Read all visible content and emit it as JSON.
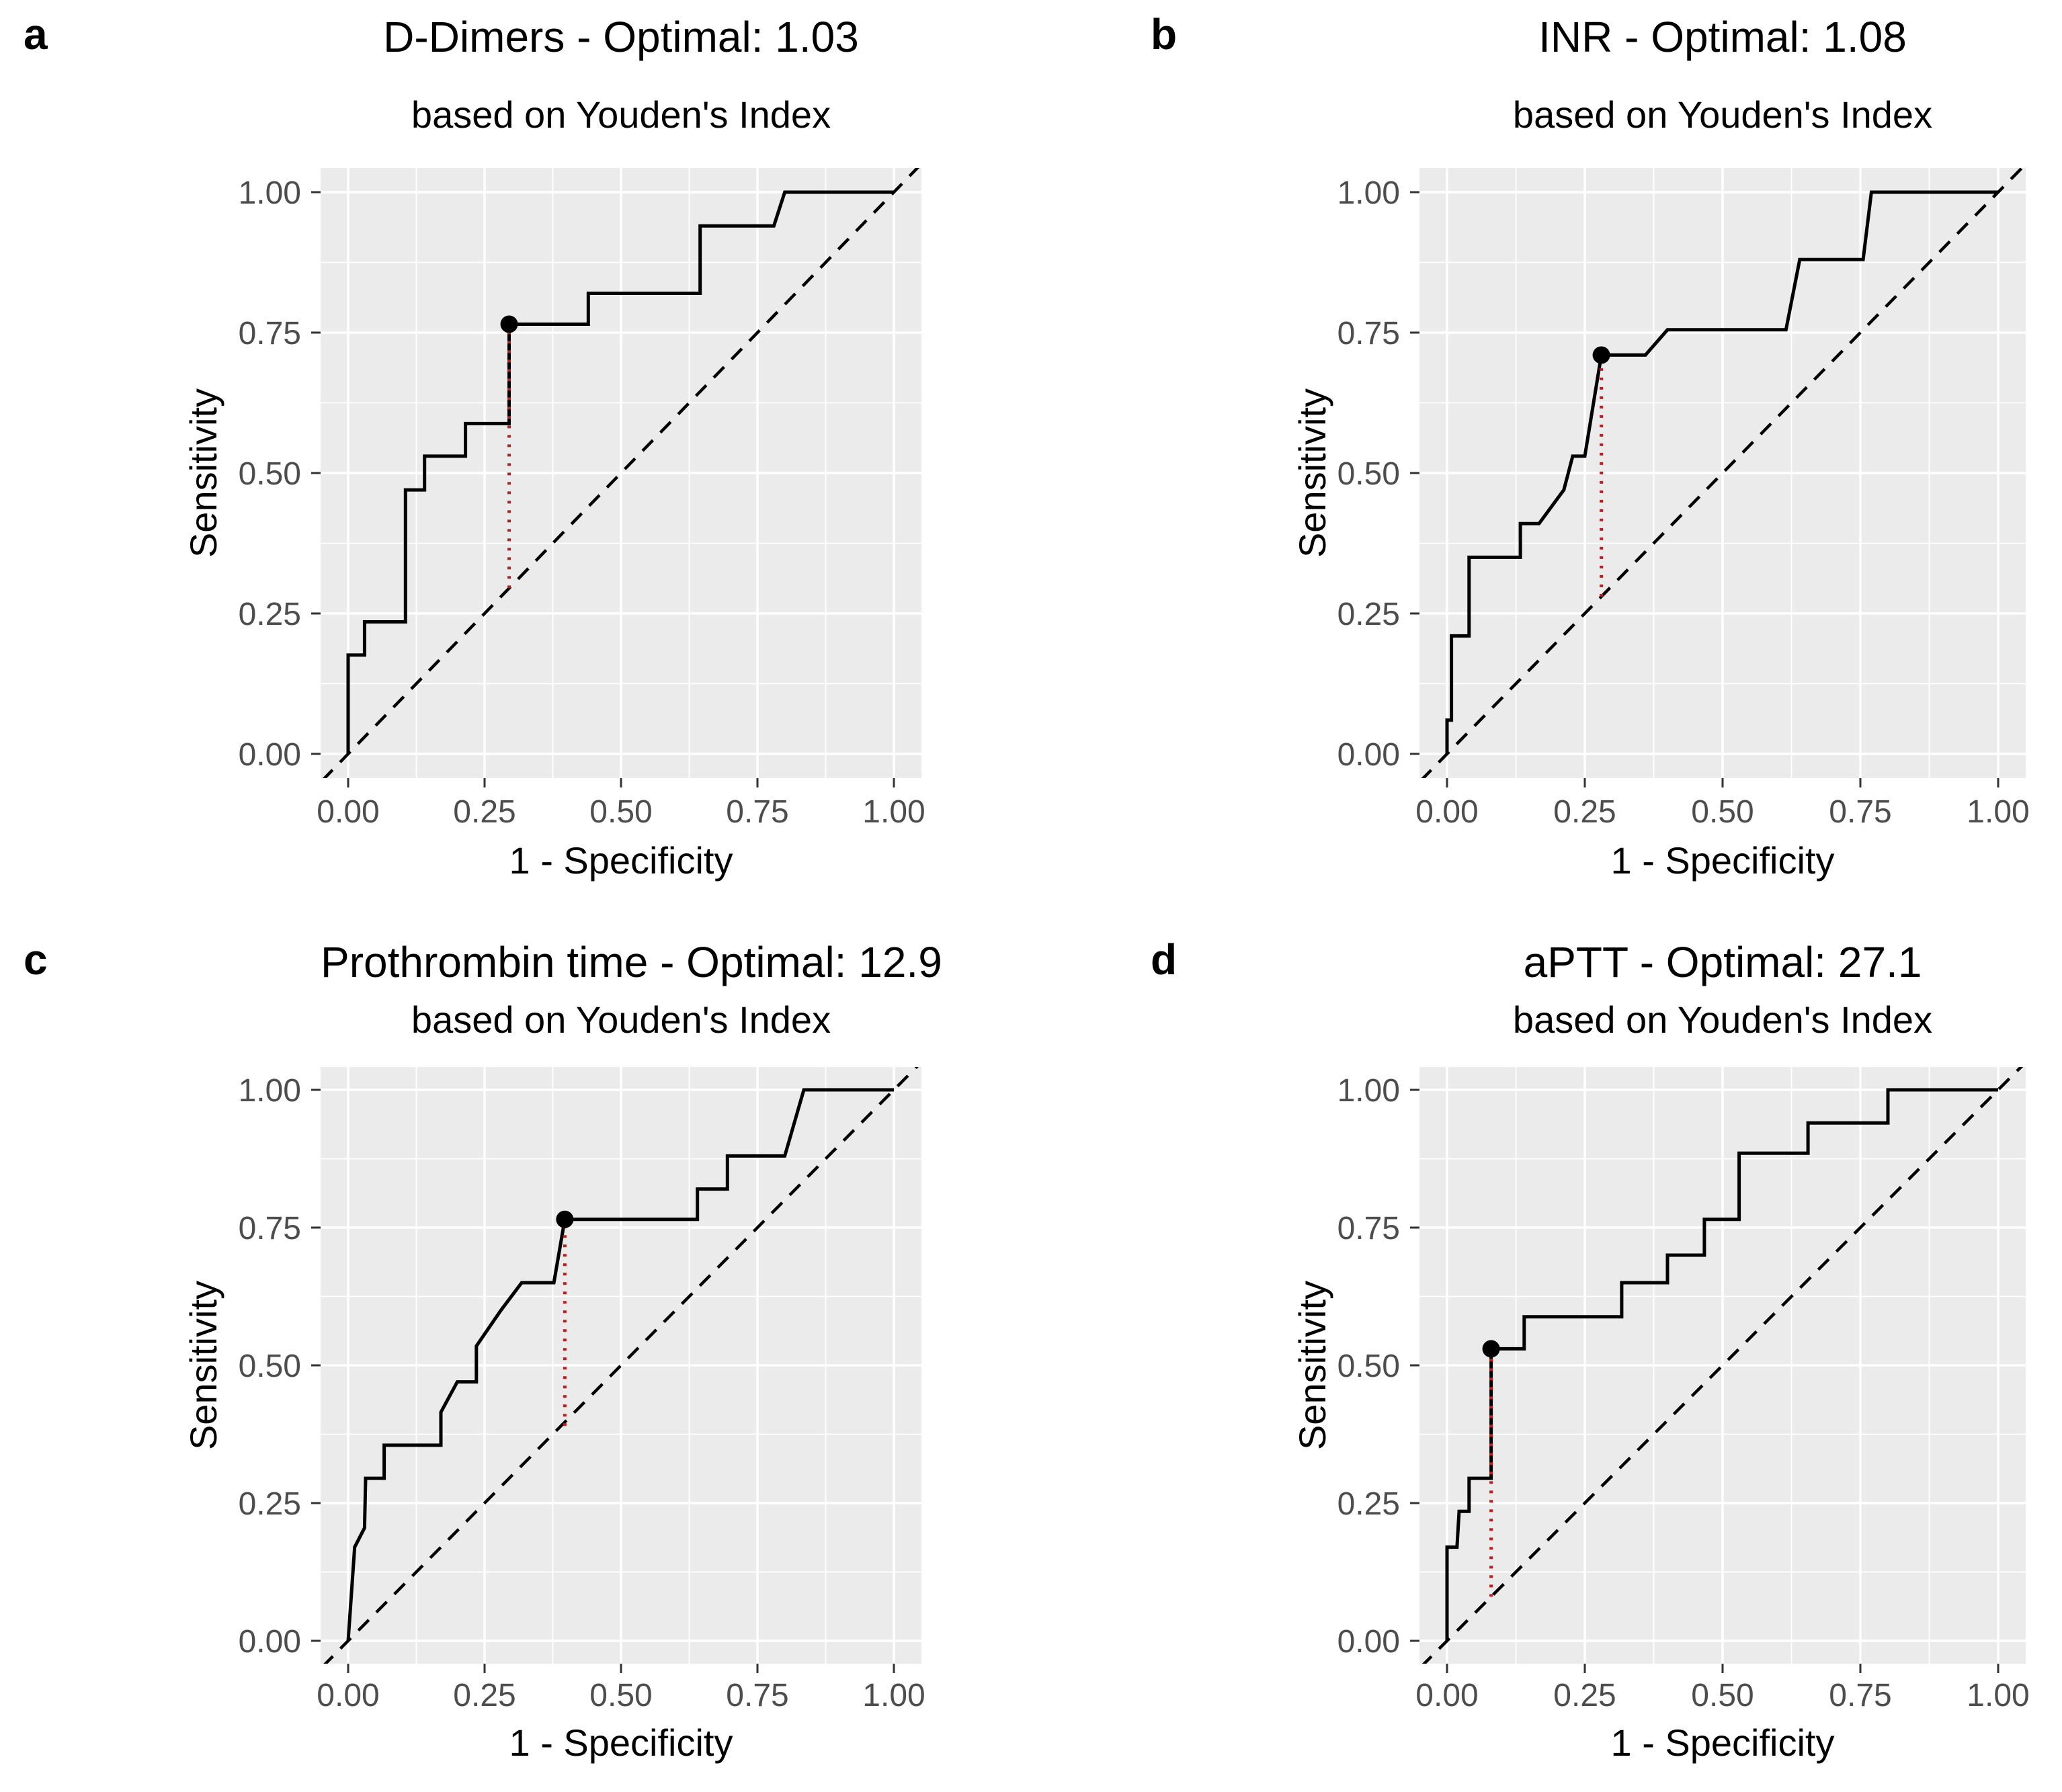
{
  "figure": {
    "background": "#ffffff",
    "panel_background": "#ebebeb",
    "grid_color": "#ffffff",
    "curve_color": "#000000",
    "reference_color": "#000000",
    "optimal_line_color": "#b22222",
    "optimal_point_color": "#000000",
    "tick_label_color": "#4d4d4d",
    "tick_mark_color": "#333333",
    "text_color": "#000000"
  },
  "chart_data": [
    {
      "panel_label": "a",
      "type": "line",
      "title": "D-Dimers - Optimal: 1.03",
      "subtitle": "based on Youden's Index",
      "xlabel": "1 - Specificity",
      "ylabel": "Sensitivity",
      "optimal_cutoff": 1.03,
      "xlim": [
        0,
        1
      ],
      "ylim": [
        0,
        1
      ],
      "x_ticks": [
        "0.00",
        "0.25",
        "0.50",
        "0.75",
        "1.00"
      ],
      "y_ticks": [
        "0.00",
        "0.25",
        "0.50",
        "0.75",
        "1.00"
      ],
      "grid": "on",
      "reference": "diagonal dashed y=x",
      "roc": {
        "x": [
          0,
          0,
          0.03,
          0.03,
          0.105,
          0.105,
          0.14,
          0.14,
          0.215,
          0.215,
          0.295,
          0.295,
          0.44,
          0.44,
          0.645,
          0.645,
          0.78,
          0.8,
          1
        ],
        "y": [
          0,
          0.176,
          0.176,
          0.235,
          0.235,
          0.47,
          0.47,
          0.53,
          0.53,
          0.588,
          0.588,
          0.765,
          0.765,
          0.82,
          0.82,
          0.94,
          0.94,
          1,
          1
        ]
      },
      "optimal_point": {
        "x": 0.295,
        "y": 0.765
      },
      "youden_segment": {
        "x": 0.295,
        "y_from": 0.295,
        "y_to": 0.765
      }
    },
    {
      "panel_label": "b",
      "type": "line",
      "title": "INR - Optimal: 1.08",
      "subtitle": "based on Youden's Index",
      "xlabel": "1 - Specificity",
      "ylabel": "Sensitivity",
      "optimal_cutoff": 1.08,
      "xlim": [
        0,
        1
      ],
      "ylim": [
        0,
        1
      ],
      "x_ticks": [
        "0.00",
        "0.25",
        "0.50",
        "0.75",
        "1.00"
      ],
      "y_ticks": [
        "0.00",
        "0.25",
        "0.50",
        "0.75",
        "1.00"
      ],
      "grid": "on",
      "reference": "diagonal dashed y=x",
      "roc": {
        "x": [
          0,
          0,
          0.008,
          0.008,
          0.04,
          0.04,
          0.133,
          0.133,
          0.167,
          0.212,
          0.228,
          0.25,
          0.28,
          0.36,
          0.4,
          0.615,
          0.64,
          0.755,
          0.77,
          1
        ],
        "y": [
          0,
          0.06,
          0.06,
          0.21,
          0.21,
          0.35,
          0.35,
          0.41,
          0.41,
          0.47,
          0.53,
          0.53,
          0.71,
          0.71,
          0.755,
          0.755,
          0.88,
          0.88,
          1,
          1
        ]
      },
      "optimal_point": {
        "x": 0.28,
        "y": 0.71
      },
      "youden_segment": {
        "x": 0.28,
        "y_from": 0.28,
        "y_to": 0.71
      }
    },
    {
      "panel_label": "c",
      "type": "line",
      "title": "Prothrombin time - Optimal: 12.9",
      "subtitle": "based on Youden's Index",
      "xlabel": "1 - Specificity",
      "ylabel": "Sensitivity",
      "optimal_cutoff": 12.9,
      "xlim": [
        0,
        1
      ],
      "ylim": [
        0,
        1
      ],
      "x_ticks": [
        "0.00",
        "0.25",
        "0.50",
        "0.75",
        "1.00"
      ],
      "y_ticks": [
        "0.00",
        "0.25",
        "0.50",
        "0.75",
        "1.00"
      ],
      "grid": "on",
      "reference": "diagonal dashed y=x",
      "roc": {
        "x": [
          0,
          0.012,
          0.03,
          0.032,
          0.066,
          0.066,
          0.17,
          0.17,
          0.2,
          0.235,
          0.235,
          0.28,
          0.318,
          0.377,
          0.397,
          0.64,
          0.64,
          0.695,
          0.695,
          0.8,
          0.835,
          1
        ],
        "y": [
          0,
          0.17,
          0.205,
          0.295,
          0.295,
          0.355,
          0.355,
          0.415,
          0.47,
          0.47,
          0.535,
          0.6,
          0.65,
          0.65,
          0.765,
          0.765,
          0.82,
          0.82,
          0.88,
          0.88,
          1,
          1
        ]
      },
      "optimal_point": {
        "x": 0.397,
        "y": 0.765
      },
      "youden_segment": {
        "x": 0.397,
        "y_from": 0.39,
        "y_to": 0.765
      }
    },
    {
      "panel_label": "d",
      "type": "line",
      "title": "aPTT - Optimal: 27.1",
      "subtitle": "based on Youden's Index",
      "xlabel": "1 - Specificity",
      "ylabel": "Sensitivity",
      "optimal_cutoff": 27.1,
      "xlim": [
        0,
        1
      ],
      "ylim": [
        0,
        1
      ],
      "x_ticks": [
        "0.00",
        "0.25",
        "0.50",
        "0.75",
        "1.00"
      ],
      "y_ticks": [
        "0.00",
        "0.25",
        "0.50",
        "0.75",
        "1.00"
      ],
      "grid": "on",
      "reference": "diagonal dashed y=x",
      "roc": {
        "x": [
          0,
          0,
          0.018,
          0.022,
          0.04,
          0.04,
          0.08,
          0.08,
          0.14,
          0.14,
          0.317,
          0.317,
          0.4,
          0.4,
          0.467,
          0.467,
          0.53,
          0.53,
          0.655,
          0.655,
          0.8,
          0.8,
          1
        ],
        "y": [
          0,
          0.17,
          0.17,
          0.235,
          0.235,
          0.295,
          0.295,
          0.53,
          0.53,
          0.588,
          0.588,
          0.65,
          0.65,
          0.7,
          0.7,
          0.765,
          0.765,
          0.885,
          0.885,
          0.94,
          0.94,
          1,
          1
        ]
      },
      "optimal_point": {
        "x": 0.08,
        "y": 0.53
      },
      "youden_segment": {
        "x": 0.08,
        "y_from": 0.08,
        "y_to": 0.53
      }
    }
  ]
}
